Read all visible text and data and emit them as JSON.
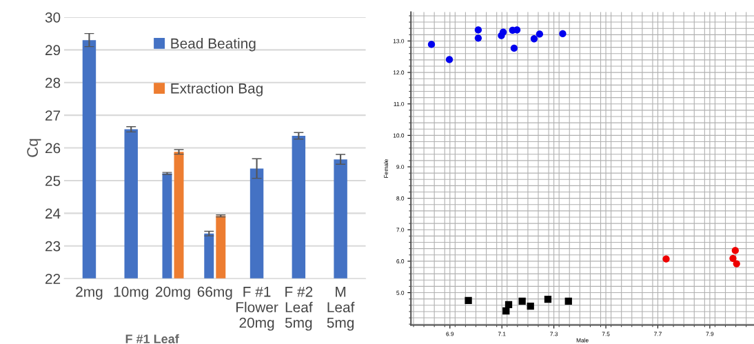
{
  "chart_data": [
    {
      "type": "bar",
      "ylabel": "Cq",
      "categories": [
        "2mg",
        "10mg",
        "20mg",
        "66mg",
        "F #1\nFlower\n20mg",
        "F #2\nLeaf\n5mg",
        "M\nLeaf\n5mg"
      ],
      "series": [
        {
          "name": "Bead Beating",
          "color": "#4472c4",
          "values": [
            29.3,
            26.57,
            25.22,
            23.38,
            25.37,
            26.37,
            25.65
          ],
          "errors": [
            0.2,
            0.08,
            0.03,
            0.07,
            0.3,
            0.1,
            0.15
          ]
        },
        {
          "name": "Extraction Bag",
          "color": "#ed7d31",
          "values": [
            null,
            null,
            25.88,
            23.92,
            null,
            null,
            null
          ],
          "errors": [
            null,
            null,
            0.07,
            0.03,
            null,
            null,
            null
          ]
        }
      ],
      "ylim": [
        22,
        30
      ],
      "yticks": [
        22,
        23,
        24,
        25,
        26,
        27,
        28,
        29,
        30
      ],
      "grid": "y",
      "legend": "top",
      "annotations": [
        "F #1 Leaf"
      ]
    },
    {
      "type": "scatter",
      "xlabel": "Male",
      "ylabel": "Female",
      "series": [
        {
          "color": "#0000ee",
          "marker": "circle",
          "x": [
            6.829,
            6.898,
            7.009,
            7.009,
            7.098,
            7.105,
            7.141,
            7.158,
            7.147,
            7.224,
            7.245,
            7.334
          ],
          "values": [
            12.89,
            12.41,
            13.35,
            13.09,
            13.17,
            13.28,
            13.34,
            13.35,
            12.77,
            13.07,
            13.22,
            13.23
          ]
        },
        {
          "color": "#ee0000",
          "marker": "circle",
          "x": [
            7.732,
            7.989,
            7.998,
            8.003
          ],
          "values": [
            6.07,
            6.09,
            6.34,
            5.92
          ]
        },
        {
          "color": "#000000",
          "marker": "square",
          "x": [
            6.971,
            7.116,
            7.126,
            7.178,
            7.21,
            7.277,
            7.356
          ],
          "values": [
            4.75,
            4.42,
            4.62,
            4.73,
            4.57,
            4.79,
            4.73
          ]
        }
      ],
      "xlim": [
        6.75,
        8.07
      ],
      "ylim": [
        3.97,
        13.92
      ],
      "xticks": [
        {
          "value": 6.9,
          "label": "6.9"
        },
        {
          "value": 7.1,
          "label": "7.1"
        },
        {
          "value": 7.3,
          "label": "7.3"
        },
        {
          "value": 7.5,
          "label": "7.5"
        },
        {
          "value": 7.7,
          "label": "7.7"
        },
        {
          "value": 7.9,
          "label": "7.9"
        }
      ],
      "yticks": [
        {
          "value": 5,
          "label": "5.0"
        },
        {
          "value": 6,
          "label": "6.0"
        },
        {
          "value": 7,
          "label": "7.0"
        },
        {
          "value": 8,
          "label": "8.0"
        },
        {
          "value": 9,
          "label": "9.0"
        },
        {
          "value": 10,
          "label": "10.0"
        },
        {
          "value": 11,
          "label": "11.0"
        },
        {
          "value": 12,
          "label": "12.0"
        },
        {
          "value": 13,
          "label": "13.0"
        }
      ],
      "grid": true
    }
  ]
}
